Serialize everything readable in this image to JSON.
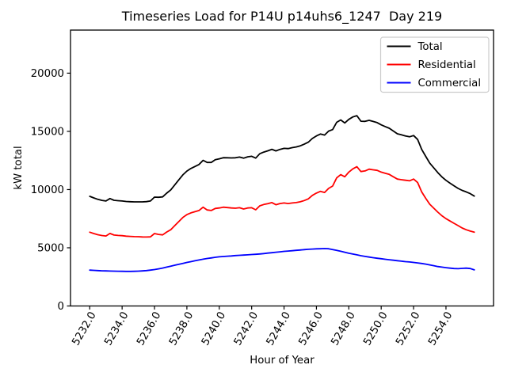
{
  "chart_data": {
    "type": "line",
    "title": "Timeseries Load for P14U p14uhs6_1247  Day 219",
    "xlabel": "Hour of Year",
    "ylabel": "kW total",
    "xlim": [
      5230.8125,
      5256.9375
    ],
    "ylim": [
      0,
      23700
    ],
    "grid": false,
    "legend_position": "upper right",
    "legend_entries": [
      "Total",
      "Residential",
      "Commercial"
    ],
    "xticks": [
      5232,
      5234,
      5236,
      5238,
      5240,
      5242,
      5244,
      5246,
      5248,
      5250,
      5252,
      5254
    ],
    "xtick_labels": [
      "5232.0",
      "5234.0",
      "5236.0",
      "5238.0",
      "5240.0",
      "5242.0",
      "5244.0",
      "5246.0",
      "5248.0",
      "5250.0",
      "5252.0",
      "5254.0"
    ],
    "xtick_rotation_deg": 60,
    "yticks": [
      0,
      5000,
      10000,
      15000,
      20000
    ],
    "ytick_labels": [
      "0",
      "5000",
      "10000",
      "15000",
      "20000"
    ],
    "x": [
      5232.0,
      5232.25,
      5232.5,
      5232.75,
      5233.0,
      5233.25,
      5233.5,
      5233.75,
      5234.0,
      5234.25,
      5234.5,
      5234.75,
      5235.0,
      5235.25,
      5235.5,
      5235.75,
      5236.0,
      5236.25,
      5236.5,
      5236.75,
      5237.0,
      5237.25,
      5237.5,
      5237.75,
      5238.0,
      5238.25,
      5238.5,
      5238.75,
      5239.0,
      5239.25,
      5239.5,
      5239.75,
      5240.0,
      5240.25,
      5240.5,
      5240.75,
      5241.0,
      5241.25,
      5241.5,
      5241.75,
      5242.0,
      5242.25,
      5242.5,
      5242.75,
      5243.0,
      5243.25,
      5243.5,
      5243.75,
      5244.0,
      5244.25,
      5244.5,
      5244.75,
      5245.0,
      5245.25,
      5245.5,
      5245.75,
      5246.0,
      5246.25,
      5246.5,
      5246.75,
      5247.0,
      5247.25,
      5247.5,
      5247.75,
      5248.0,
      5248.25,
      5248.5,
      5248.75,
      5249.0,
      5249.25,
      5249.5,
      5249.75,
      5250.0,
      5250.25,
      5250.5,
      5250.75,
      5251.0,
      5251.25,
      5251.5,
      5251.75,
      5252.0,
      5252.25,
      5252.5,
      5252.75,
      5253.0,
      5253.25,
      5253.5,
      5253.75,
      5254.0,
      5254.25,
      5254.5,
      5254.75,
      5255.0,
      5255.25,
      5255.5,
      5255.75
    ],
    "series": [
      {
        "name": "Total",
        "color": "#000000",
        "values": [
          9420,
          9280,
          9160,
          9070,
          9020,
          9230,
          9080,
          9045,
          9020,
          8975,
          8955,
          8940,
          8940,
          8940,
          8960,
          9020,
          9350,
          9340,
          9370,
          9690,
          9970,
          10400,
          10830,
          11260,
          11590,
          11810,
          11980,
          12150,
          12510,
          12330,
          12330,
          12560,
          12640,
          12740,
          12730,
          12720,
          12730,
          12790,
          12700,
          12810,
          12860,
          12705,
          13075,
          13220,
          13330,
          13460,
          13320,
          13450,
          13540,
          13520,
          13600,
          13660,
          13760,
          13900,
          14070,
          14390,
          14610,
          14770,
          14680,
          15020,
          15150,
          15780,
          15980,
          15720,
          16030,
          16240,
          16350,
          15870,
          15860,
          15950,
          15850,
          15750,
          15560,
          15410,
          15270,
          15030,
          14790,
          14700,
          14610,
          14530,
          14640,
          14300,
          13450,
          12850,
          12270,
          11860,
          11450,
          11090,
          10790,
          10550,
          10320,
          10100,
          9930,
          9800,
          9650,
          9440
        ]
      },
      {
        "name": "Residential",
        "color": "#ff0000",
        "values": [
          6340,
          6220,
          6120,
          6050,
          6010,
          6230,
          6090,
          6060,
          6040,
          6000,
          5980,
          5960,
          5950,
          5930,
          5920,
          5940,
          6220,
          6150,
          6110,
          6350,
          6550,
          6900,
          7250,
          7600,
          7850,
          8000,
          8100,
          8200,
          8490,
          8250,
          8200,
          8380,
          8420,
          8490,
          8450,
          8420,
          8400,
          8440,
          8330,
          8420,
          8440,
          8265,
          8605,
          8720,
          8790,
          8880,
          8700,
          8800,
          8850,
          8800,
          8850,
          8880,
          8950,
          9060,
          9200,
          9500,
          9700,
          9850,
          9750,
          10100,
          10300,
          11000,
          11280,
          11100,
          11500,
          11780,
          11960,
          11550,
          11600,
          11750,
          11700,
          11650,
          11500,
          11400,
          11300,
          11100,
          10900,
          10850,
          10800,
          10750,
          10900,
          10600,
          9800,
          9250,
          8740,
          8400,
          8060,
          7750,
          7500,
          7300,
          7100,
          6900,
          6700,
          6550,
          6430,
          6340
        ]
      },
      {
        "name": "Commercial",
        "color": "#0000ff",
        "values": [
          3080,
          3060,
          3040,
          3020,
          3010,
          3000,
          2990,
          2985,
          2980,
          2975,
          2975,
          2980,
          2990,
          3010,
          3040,
          3080,
          3130,
          3190,
          3260,
          3340,
          3420,
          3500,
          3580,
          3660,
          3740,
          3810,
          3880,
          3950,
          4020,
          4080,
          4130,
          4180,
          4220,
          4250,
          4280,
          4300,
          4330,
          4350,
          4370,
          4390,
          4420,
          4440,
          4470,
          4500,
          4540,
          4580,
          4620,
          4650,
          4690,
          4720,
          4750,
          4780,
          4810,
          4840,
          4870,
          4890,
          4910,
          4920,
          4930,
          4920,
          4850,
          4780,
          4700,
          4620,
          4530,
          4460,
          4390,
          4320,
          4260,
          4200,
          4150,
          4100,
          4060,
          4010,
          3970,
          3930,
          3890,
          3850,
          3810,
          3780,
          3740,
          3700,
          3650,
          3600,
          3530,
          3460,
          3390,
          3340,
          3290,
          3250,
          3220,
          3200,
          3230,
          3250,
          3220,
          3100
        ]
      }
    ]
  }
}
